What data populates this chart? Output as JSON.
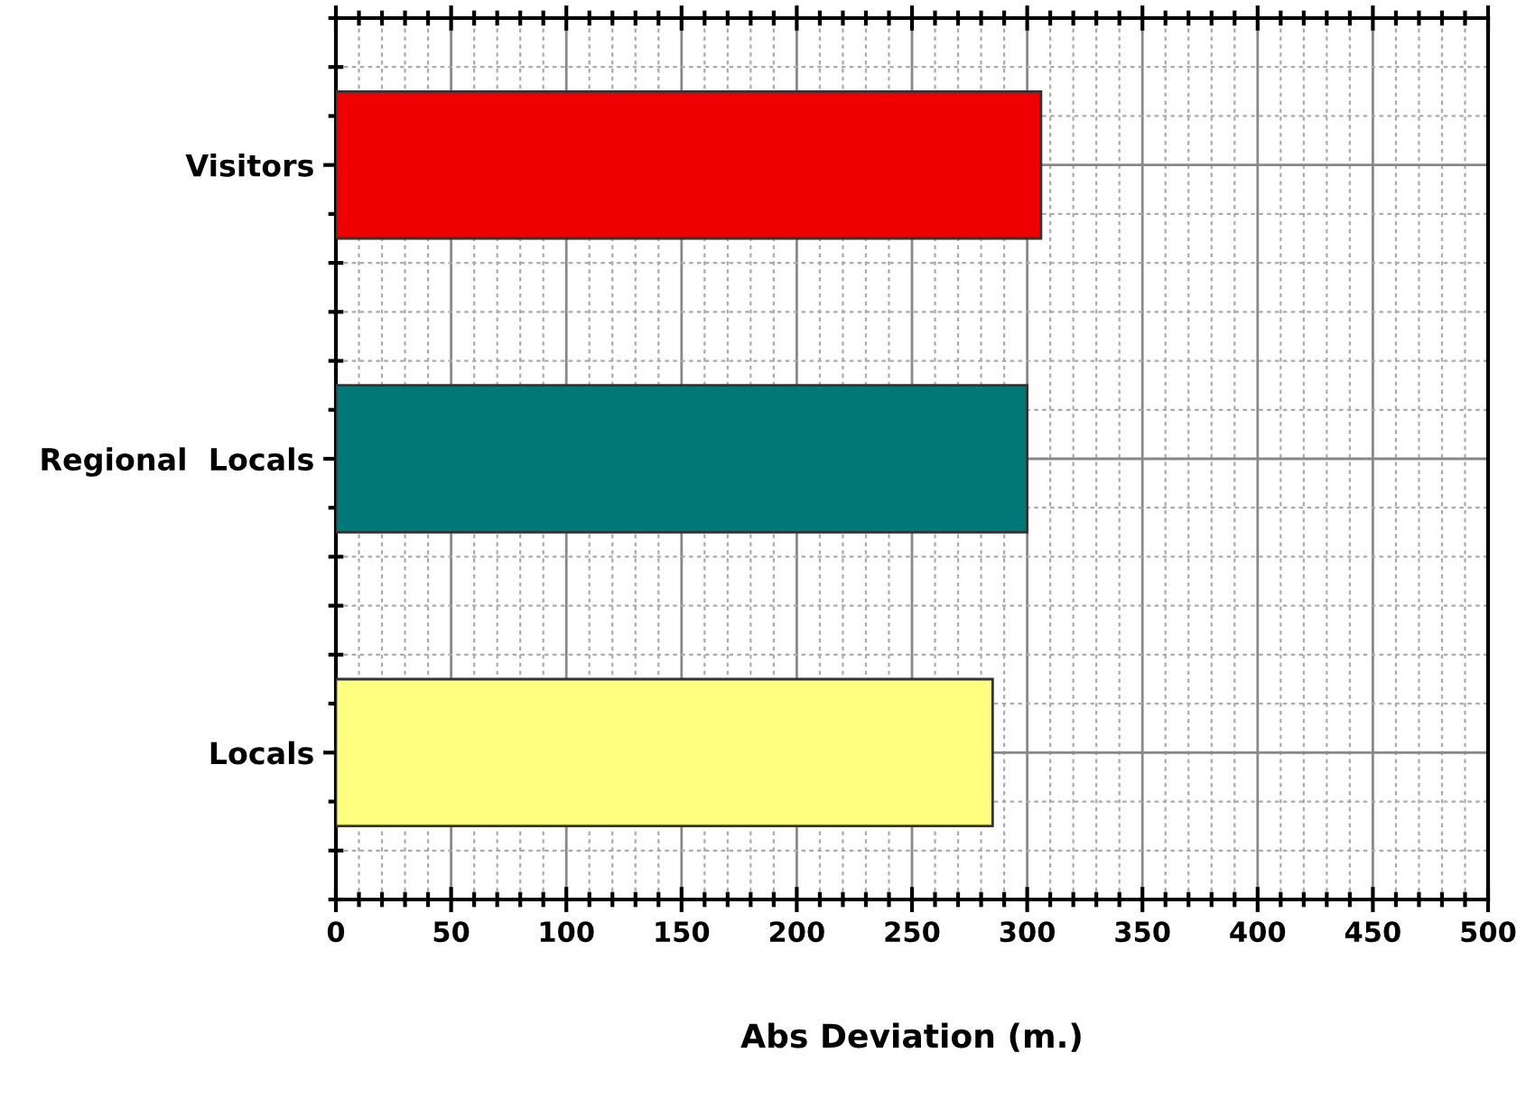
{
  "chart_data": {
    "type": "bar",
    "orientation": "horizontal",
    "categories": [
      "Visitors",
      "Regional  Locals",
      "Locals"
    ],
    "values": [
      306,
      300,
      285
    ],
    "colors": [
      "#ee0000",
      "#007878",
      "#ffff80"
    ],
    "xlabel": "Abs Deviation (m.)",
    "xlim": [
      0,
      500
    ],
    "xticks": [
      0,
      50,
      100,
      150,
      200,
      250,
      300,
      350,
      400,
      450,
      500
    ],
    "grid": true
  }
}
